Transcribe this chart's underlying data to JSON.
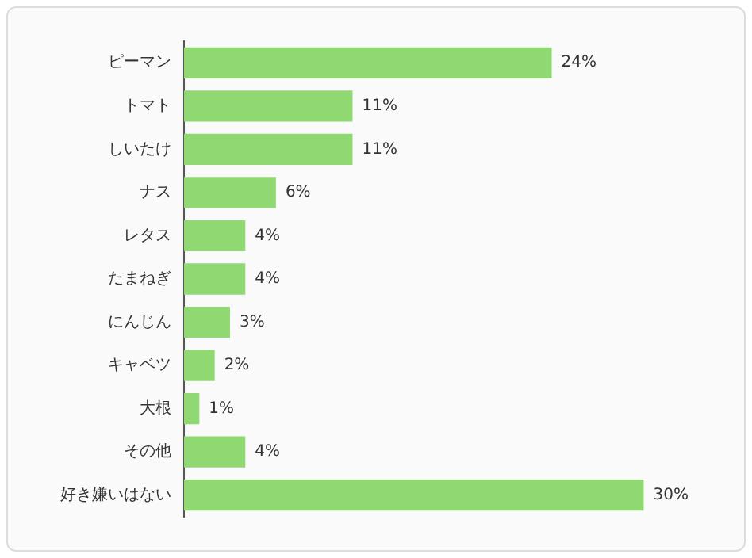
{
  "chart_data": {
    "type": "bar",
    "orientation": "horizontal",
    "categories": [
      "ピーマン",
      "トマト",
      "しいたけ",
      "ナス",
      "レタス",
      "たまねぎ",
      "にんじん",
      "キャベツ",
      "大根",
      "その他",
      "好き嫌いはない"
    ],
    "values": [
      24,
      11,
      11,
      6,
      4,
      4,
      3,
      2,
      1,
      4,
      30
    ],
    "value_labels": [
      "24%",
      "11%",
      "11%",
      "6%",
      "4%",
      "4%",
      "3%",
      "2%",
      "1%",
      "4%",
      "30%"
    ],
    "color": "#8fd872",
    "grid": false,
    "legend": false,
    "tick_labels": "y"
  }
}
